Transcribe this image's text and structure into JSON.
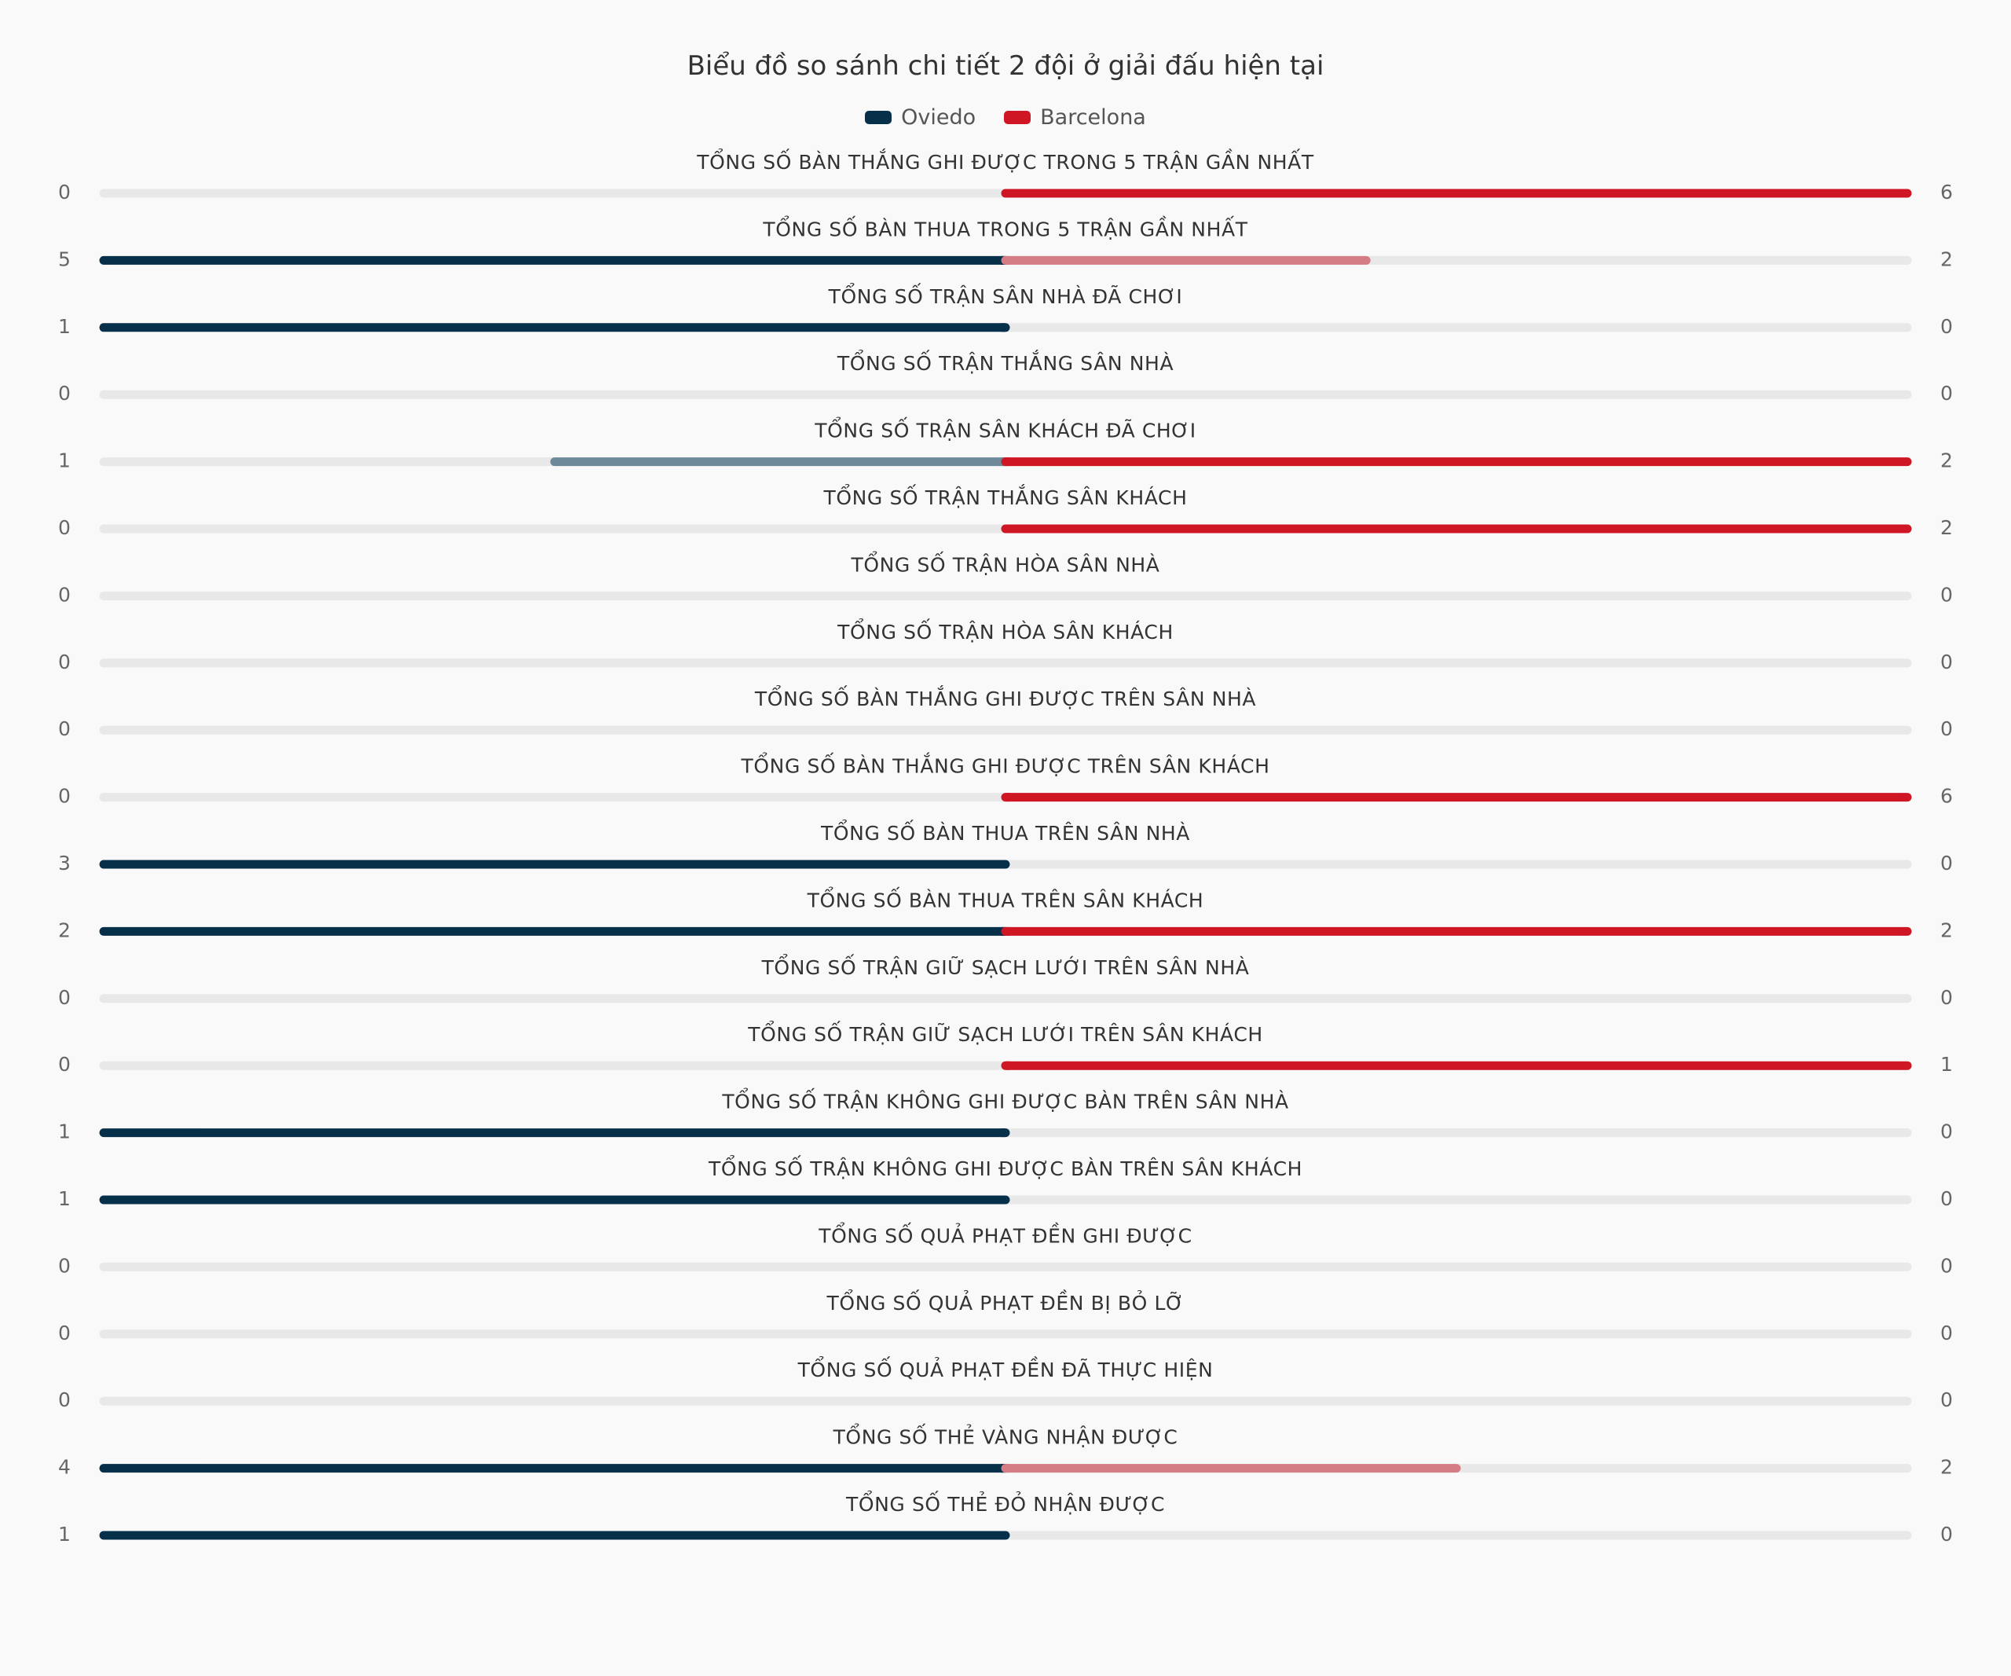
{
  "title": "Biểu đồ so sánh chi tiết 2 đội ở giải đấu hiện tại",
  "colors": {
    "team1": "#062f4a",
    "team1_faded": "#6e8a9a",
    "team2": "#cf1625",
    "team2_faded": "#d47d84",
    "track": "#e8e8e8"
  },
  "legend": [
    {
      "name": "Oviedo",
      "color": "#062f4a"
    },
    {
      "name": "Barcelona",
      "color": "#cf1625"
    }
  ],
  "chart_data": {
    "type": "bar",
    "orientation": "diverging-horizontal",
    "title": "Biểu đồ so sánh chi tiết 2 đội ở giải đấu hiện tại",
    "categories": [
      "TỔNG SỐ BÀN THẮNG GHI ĐƯỢC TRONG 5 TRẬN GẦN NHẤT",
      "TỔNG SỐ BÀN THUA TRONG 5 TRẬN GẦN NHẤT",
      "TỔNG SỐ TRẬN SÂN NHÀ ĐÃ CHƠI",
      "TỔNG SỐ TRẬN THẮNG SÂN NHÀ",
      "TỔNG SỐ TRẬN SÂN KHÁCH ĐÃ CHƠI",
      "TỔNG SỐ TRẬN THẮNG SÂN KHÁCH",
      "TỔNG SỐ TRẬN HÒA SÂN NHÀ",
      "TỔNG SỐ TRẬN HÒA SÂN KHÁCH",
      "TỔNG SỐ BÀN THẮNG GHI ĐƯỢC TRÊN SÂN NHÀ",
      "TỔNG SỐ BÀN THẮNG GHI ĐƯỢC TRÊN SÂN KHÁCH",
      "TỔNG SỐ BÀN THUA TRÊN SÂN NHÀ",
      "TỔNG SỐ BÀN THUA TRÊN SÂN KHÁCH",
      "TỔNG SỐ TRẬN GIỮ SẠCH LƯỚI TRÊN SÂN NHÀ",
      "TỔNG SỐ TRẬN GIỮ SẠCH LƯỚI TRÊN SÂN KHÁCH",
      "TỔNG SỐ TRẬN KHÔNG GHI ĐƯỢC BÀN TRÊN SÂN NHÀ",
      "TỔNG SỐ TRẬN KHÔNG GHI ĐƯỢC BÀN TRÊN SÂN KHÁCH",
      "TỔNG SỐ QUẢ PHẠT ĐỀN GHI ĐƯỢC",
      "TỔNG SỐ QUẢ PHẠT ĐỀN BỊ BỎ LỠ",
      "TỔNG SỐ QUẢ PHẠT ĐỀN ĐÃ THỰC HIỆN",
      "TỔNG SỐ THẺ VÀNG NHẬN ĐƯỢC",
      "TỔNG SỐ THẺ ĐỎ NHẬN ĐƯỢC"
    ],
    "series": [
      {
        "name": "Oviedo",
        "values": [
          0,
          5,
          1,
          0,
          1,
          0,
          0,
          0,
          0,
          0,
          3,
          2,
          0,
          0,
          1,
          1,
          0,
          0,
          0,
          4,
          1
        ]
      },
      {
        "name": "Barcelona",
        "values": [
          6,
          2,
          0,
          0,
          2,
          2,
          0,
          0,
          0,
          6,
          0,
          2,
          0,
          1,
          0,
          0,
          0,
          0,
          0,
          2,
          0
        ]
      }
    ],
    "scale": "each side normalized to the row maximum",
    "legend_position": "top-center"
  }
}
